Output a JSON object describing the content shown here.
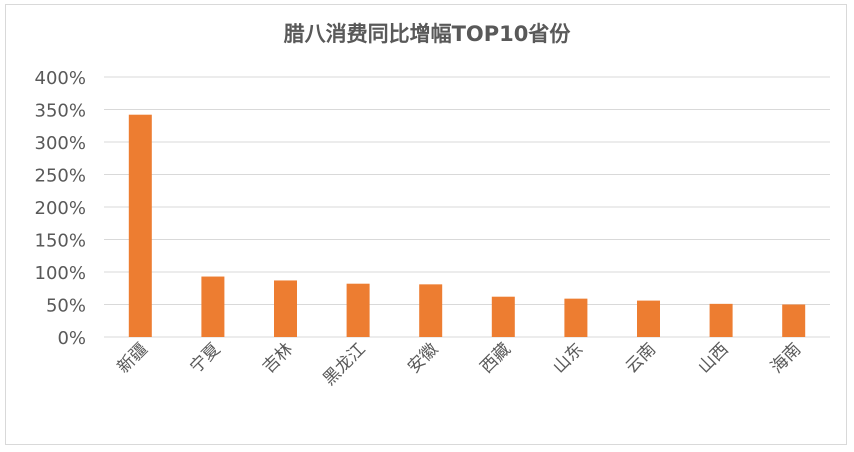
{
  "chart_data": {
    "type": "bar",
    "title": "腊八消费同比增幅TOP10省份",
    "categories": [
      "新疆",
      "宁夏",
      "吉林",
      "黑龙江",
      "安徽",
      "西藏",
      "山东",
      "云南",
      "山西",
      "海南"
    ],
    "values": [
      342,
      93,
      87,
      82,
      81,
      62,
      59,
      56,
      51,
      50
    ],
    "unit": "%",
    "ylim": [
      0,
      400
    ],
    "yticks": [
      "0%",
      "50%",
      "100%",
      "150%",
      "200%",
      "250%",
      "300%",
      "350%",
      "400%"
    ],
    "grid": true,
    "legend": "none",
    "bar_color": "#ED7D31"
  }
}
